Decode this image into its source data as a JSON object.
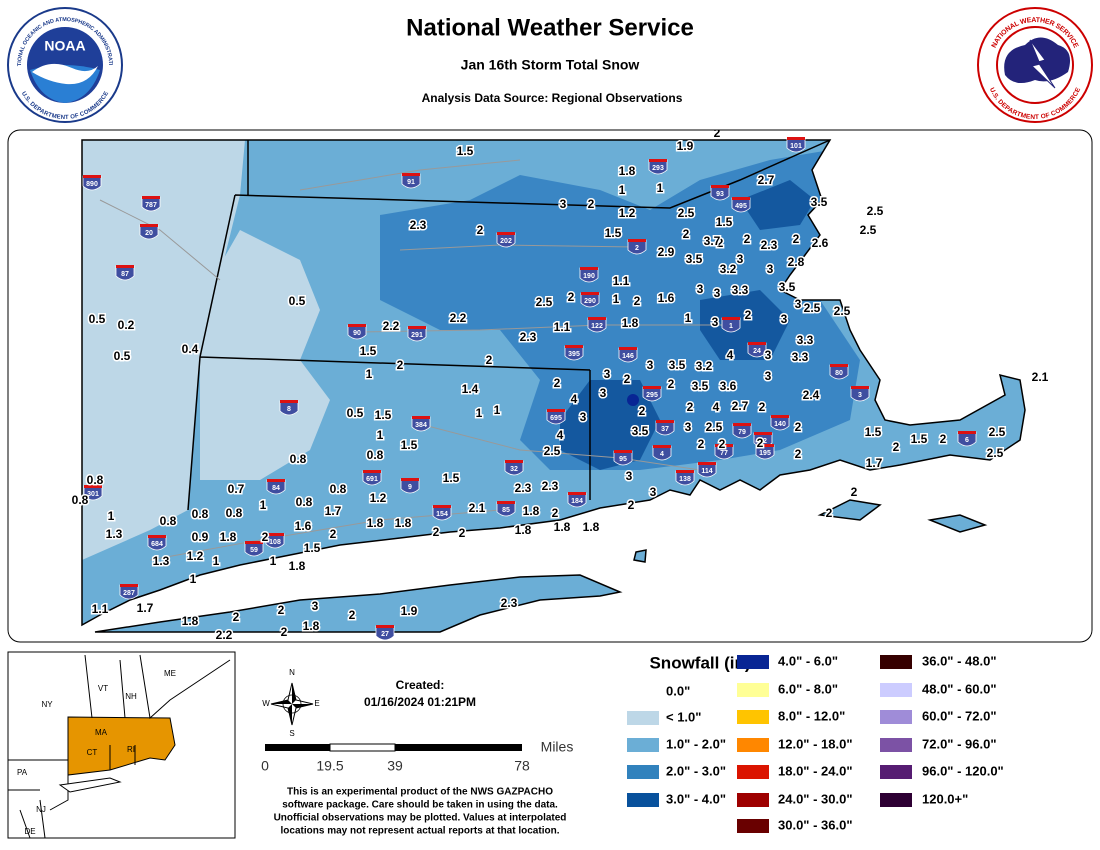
{
  "header": {
    "title": "National Weather Service",
    "subtitle": "Jan 16th Storm Total Snow",
    "source": "Analysis Data Source: Regional Observations"
  },
  "logos": {
    "noaa": {
      "name": "NOAA",
      "ring_top": "NATIONAL OCEANIC AND ATMOSPHERIC ADMINISTRATION",
      "ring_bottom": "U.S. DEPARTMENT OF COMMERCE"
    },
    "nws": {
      "ring_top": "NATIONAL WEATHER SERVICE",
      "ring_bottom": "U.S. DEPARTMENT OF COMMERCE"
    }
  },
  "map": {
    "snow_reports": [
      "1.5",
      "2",
      "1.9",
      "1.8",
      "1",
      "1",
      "3",
      "2",
      "1.2",
      "2.5",
      "1.5",
      "2.7",
      "3.5",
      "2.5",
      "2.5",
      "2.3",
      "2",
      "1.5",
      "2",
      "2",
      "3.7",
      "2",
      "2.3",
      "2",
      "2.6",
      "2.9",
      "3.5",
      "3",
      "2.8",
      "3.2",
      "3",
      "1.1",
      "0.5",
      "2.5",
      "2",
      "1",
      "2",
      "1.6",
      "3",
      "3",
      "3.3",
      "3.5",
      "3",
      "2.5",
      "2.5",
      "0.5",
      "0.2",
      "2.2",
      "2.2",
      "1.1",
      "1.8",
      "1",
      "3",
      "2",
      "3",
      "2.3",
      "1.5",
      "3.3",
      "0.5",
      "0.4",
      "2",
      "1",
      "2",
      "3",
      "3.5",
      "3.2",
      "4",
      "3",
      "3.3",
      "2.1",
      "1.4",
      "2",
      "3",
      "2",
      "2",
      "3.5",
      "3.6",
      "3",
      "2.4",
      "3",
      "4",
      "3",
      "2",
      "2",
      "4",
      "2.7",
      "2",
      "0.5",
      "1.5",
      "1",
      "1",
      "1",
      "1.5",
      "4",
      "3.5",
      "3",
      "2.5",
      "2",
      "2",
      "2",
      "2",
      "1.5",
      "2",
      "1.5",
      "2",
      "2.5",
      "2.5",
      "0.8",
      "2.5",
      "2",
      "1.7",
      "0.8",
      "0.8",
      "0.8",
      "1.5",
      "3",
      "0.7",
      "0.8",
      "1.2",
      "2.3",
      "2.3",
      "3",
      "2",
      "0.8",
      "1.7",
      "1",
      "1",
      "0.8",
      "0.8",
      "0.8",
      "1.6",
      "1.8",
      "1.8",
      "2",
      "2.1",
      "1.8",
      "2",
      "2",
      "2",
      "1.3",
      "0.9",
      "1.8",
      "2",
      "2",
      "2",
      "1.8",
      "1.8",
      "1.8",
      "1.5",
      "1.2",
      "1",
      "1.3",
      "1",
      "1.8",
      "1",
      "2.3",
      "1.1",
      "1.7",
      "3",
      "2",
      "1.9",
      "1.8",
      "2",
      "2",
      "1.8",
      "2.2",
      "2"
    ],
    "highway_shields": [
      "890",
      "787",
      "20",
      "87",
      "91",
      "293",
      "93",
      "495",
      "101",
      "202",
      "2",
      "190",
      "290",
      "122",
      "90",
      "291",
      "395",
      "146",
      "1",
      "24",
      "295",
      "80",
      "3",
      "695",
      "37",
      "95",
      "4",
      "79",
      "140",
      "72",
      "195",
      "77",
      "138",
      "114",
      "6",
      "32",
      "184",
      "84",
      "8",
      "384",
      "691",
      "9",
      "154",
      "85",
      "684",
      "59",
      "108",
      "287",
      "27",
      "301"
    ]
  },
  "inset_map": {
    "states": [
      "ME",
      "VT",
      "NH",
      "NY",
      "MA",
      "CT",
      "RI",
      "PA",
      "NJ",
      "DE"
    ]
  },
  "compass": {
    "n": "N",
    "s": "S",
    "e": "E",
    "w": "W"
  },
  "created": {
    "label": "Created:",
    "timestamp": "01/16/2024 01:21PM"
  },
  "scale_bar": {
    "unit": "Miles",
    "ticks": [
      "0",
      "19.5",
      "39",
      "78"
    ]
  },
  "disclaimer": [
    "This is an experimental product of the NWS GAZPACHO",
    "software package. Care should be taken in using the data.",
    "Unofficial observations may be plotted. Values at interpolated",
    "locations may not represent actual reports at that location."
  ],
  "legend": {
    "title": "Snowfall (in)",
    "entries": [
      {
        "label": "0.0\"",
        "color": "#ffffff"
      },
      {
        "label": "< 1.0\"",
        "color": "#bdd7e7"
      },
      {
        "label": "1.0\" - 2.0\"",
        "color": "#6baed6"
      },
      {
        "label": "2.0\" - 3.0\"",
        "color": "#3182bd"
      },
      {
        "label": "3.0\" - 4.0\"",
        "color": "#08519c"
      },
      {
        "label": "4.0\" - 6.0\"",
        "color": "#082594"
      },
      {
        "label": "6.0\" - 8.0\"",
        "color": "#ffff96"
      },
      {
        "label": "8.0\" - 12.0\"",
        "color": "#ffc400"
      },
      {
        "label": "12.0\" - 18.0\"",
        "color": "#ff8700"
      },
      {
        "label": "18.0\" - 24.0\"",
        "color": "#db1400"
      },
      {
        "label": "24.0\" - 30.0\"",
        "color": "#9e0000"
      },
      {
        "label": "30.0\" - 36.0\"",
        "color": "#690000"
      },
      {
        "label": "36.0\" - 48.0\"",
        "color": "#360000"
      },
      {
        "label": "48.0\" - 60.0\"",
        "color": "#ccccff"
      },
      {
        "label": "60.0\" - 72.0\"",
        "color": "#9f8cd8"
      },
      {
        "label": "72.0\" - 96.0\"",
        "color": "#7c52a5"
      },
      {
        "label": "96.0\" - 120.0\"",
        "color": "#561c72"
      },
      {
        "label": "120.0+\"",
        "color": "#2e0033"
      }
    ]
  }
}
